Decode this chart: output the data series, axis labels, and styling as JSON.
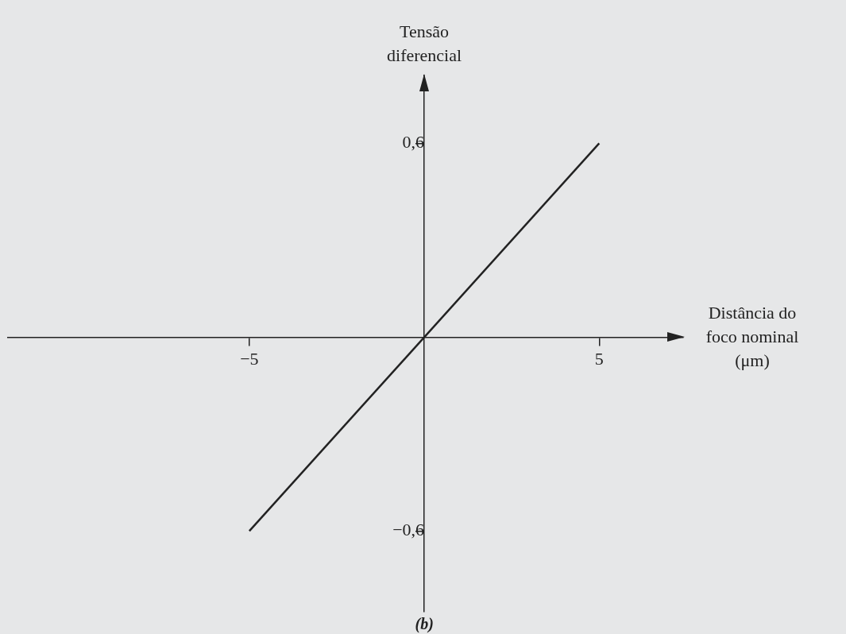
{
  "chart_data": {
    "type": "line",
    "xlabel": "Distância do foco nominal (μm)",
    "ylabel": "Tensão diferencial",
    "annotations": [
      "(b)"
    ],
    "x": [
      -5,
      5
    ],
    "values": [
      -0.6,
      0.6
    ],
    "color": "#222222",
    "marker": "none",
    "line_style": "solid",
    "grid": false,
    "xlim": [
      -11.9,
      7.4
    ],
    "ylim": [
      -0.85,
      0.81
    ],
    "xticks": [
      {
        "value": -5,
        "label": "−5"
      },
      {
        "value": 5,
        "label": "5"
      }
    ],
    "yticks": [
      {
        "value": -0.6,
        "label": "−0,6"
      },
      {
        "value": 0.6,
        "label": "0,6"
      }
    ]
  }
}
